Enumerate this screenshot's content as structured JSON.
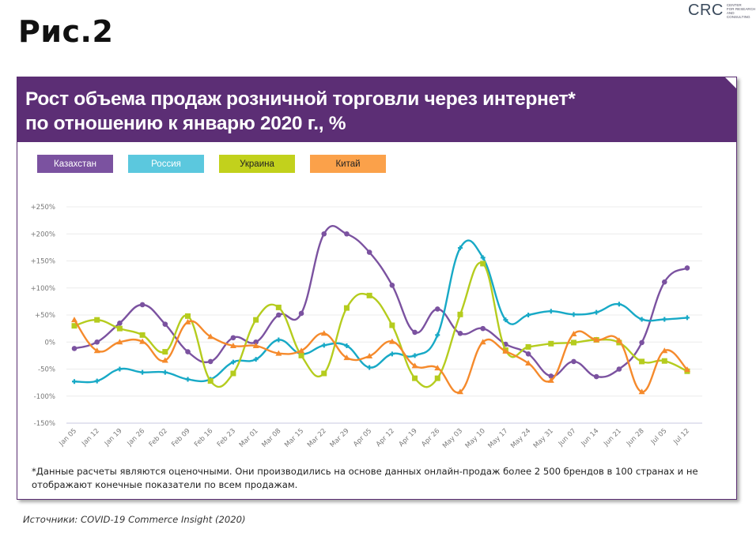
{
  "figure_label": "Рис.2",
  "logo": {
    "mark": "CRC",
    "text_lines": [
      "Center",
      "for research",
      "and consulting"
    ]
  },
  "card": {
    "title_line1": "Рост объема продаж розничной торговли через интернет*",
    "title_line2": "по отношению к январю 2020 г., %"
  },
  "footnote": "*Данные расчеты являются оценочными. Они производились  на основе данных онлайн-продаж более 2 500 брендов в 100 странах и не отображают конечные показатели по всем продажам.",
  "source": "Источники: COVID-19 Commerce Insight (2020)",
  "chart_data": {
    "type": "line",
    "title": "Рост объема продаж розничной торговли через интернет* по отношению к январю 2020 г., %",
    "xlabel": "",
    "ylabel": "",
    "ylim": [
      -150,
      250
    ],
    "yticks": [
      250,
      200,
      150,
      100,
      50,
      0,
      -50,
      -100,
      -150
    ],
    "ytick_labels": [
      "+250%",
      "+200%",
      "+150%",
      "+100%",
      "+50%",
      "0%",
      "-50%",
      "-100%",
      "-150%"
    ],
    "grid": true,
    "legend_position": "top-left",
    "categories": [
      "Jan 05",
      "Jan 12",
      "Jan 19",
      "Jan 26",
      "Feb 02",
      "Feb 09",
      "Feb 16",
      "Feb 23",
      "Mar 01",
      "Mar 08",
      "Mar 15",
      "Mar 22",
      "Mar 29",
      "Apr 05",
      "Apr 12",
      "Apr 19",
      "Apr 26",
      "May 03",
      "May 10",
      "May 17",
      "May 24",
      "May 31",
      "Jun 07",
      "Jun 14",
      "Jun 21",
      "Jun 28",
      "Jul 05",
      "Jul 12"
    ],
    "series": [
      {
        "name": "Казахстан",
        "color": "#7b52a0",
        "text_color": "#ffffff",
        "marker": "circle",
        "values": [
          -12,
          0,
          35,
          69,
          33,
          -18,
          -36,
          8,
          0,
          50,
          53,
          200,
          200,
          166,
          105,
          18,
          61,
          16,
          25,
          -4,
          -22,
          -63,
          -36,
          -64,
          -50,
          -1,
          111,
          137
        ]
      },
      {
        "name": "Россия",
        "color": "#17a9c6",
        "legend_color": "#5bc8de",
        "text_color": "#ffffff",
        "marker": "cross",
        "values": [
          -73,
          -72,
          -50,
          -56,
          -56,
          -69,
          -69,
          -37,
          -32,
          4,
          -22,
          -6,
          -7,
          -47,
          -22,
          -25,
          13,
          174,
          156,
          41,
          50,
          57,
          51,
          55,
          70,
          42,
          42,
          45
        ]
      },
      {
        "name": "Украина",
        "color": "#b5cc1e",
        "legend_color": "#c2d11c",
        "text_color": "#222222",
        "marker": "square",
        "values": [
          30,
          41,
          25,
          13,
          -18,
          48,
          -72,
          -58,
          41,
          64,
          -25,
          -58,
          63,
          86,
          31,
          -67,
          -67,
          51,
          145,
          -15,
          -9,
          -3,
          -1,
          4,
          -1,
          -36,
          -35,
          -54
        ]
      },
      {
        "name": "Китай",
        "color": "#f58a2c",
        "legend_color": "#fba14a",
        "text_color": "#222222",
        "marker": "triangle",
        "values": [
          41,
          -16,
          0,
          1,
          -34,
          37,
          10,
          -7,
          -7,
          -21,
          -16,
          16,
          -29,
          -26,
          1,
          -44,
          -48,
          -92,
          0,
          -17,
          -39,
          -71,
          15,
          4,
          3,
          -92,
          -16,
          -51
        ]
      }
    ]
  }
}
